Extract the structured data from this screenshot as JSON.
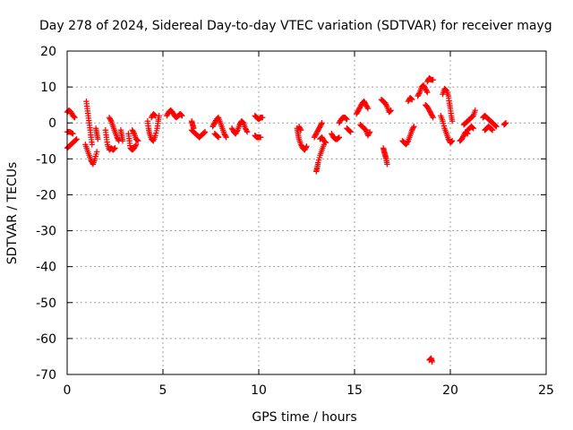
{
  "chart_data": {
    "type": "scatter",
    "title": "Day 278 of 2024, Sidereal Day-to-day VTEC variation (SDTVAR) for receiver mayg",
    "xlabel": "GPS time / hours",
    "ylabel": "SDTVAR / TECUs",
    "xlim": [
      0,
      25
    ],
    "ylim": [
      -70,
      20
    ],
    "xticks": [
      0,
      5,
      10,
      15,
      20,
      25
    ],
    "yticks": [
      20,
      10,
      0,
      -10,
      -20,
      -30,
      -40,
      -50,
      -60,
      -70
    ],
    "grid": true,
    "marker": "+",
    "color": "#ff0000",
    "series": [
      {
        "name": "SDTVAR",
        "segments": [
          [
            [
              0.0,
              3.0
            ],
            [
              0.1,
              3.5
            ],
            [
              0.2,
              3.0
            ],
            [
              0.3,
              2.0
            ],
            [
              0.4,
              1.5
            ]
          ],
          [
            [
              0.0,
              -7.0
            ],
            [
              0.1,
              -6.5
            ],
            [
              0.2,
              -6.0
            ],
            [
              0.3,
              -5.5
            ],
            [
              0.4,
              -5.0
            ],
            [
              0.5,
              -4.5
            ]
          ],
          [
            [
              0.0,
              -2.5
            ],
            [
              0.15,
              -2.5
            ],
            [
              0.3,
              -3.0
            ]
          ],
          [
            [
              1.0,
              6.0
            ],
            [
              1.05,
              4.0
            ],
            [
              1.1,
              2.0
            ],
            [
              1.15,
              0.0
            ],
            [
              1.2,
              -2.0
            ],
            [
              1.25,
              -4.0
            ],
            [
              1.3,
              -6.0
            ]
          ],
          [
            [
              0.95,
              -6.0
            ],
            [
              1.05,
              -7.5
            ],
            [
              1.15,
              -9.0
            ],
            [
              1.25,
              -10.5
            ],
            [
              1.35,
              -11.5
            ],
            [
              1.45,
              -10.0
            ],
            [
              1.55,
              -8.0
            ]
          ],
          [
            [
              1.5,
              -1.5
            ],
            [
              1.55,
              -3.0
            ],
            [
              1.6,
              -4.5
            ]
          ],
          [
            [
              2.0,
              -2.0
            ],
            [
              2.05,
              -4.0
            ],
            [
              2.1,
              -6.0
            ],
            [
              2.2,
              -7.5
            ],
            [
              2.3,
              -7.0
            ],
            [
              2.4,
              -7.5
            ],
            [
              2.5,
              -7.0
            ]
          ],
          [
            [
              2.2,
              1.5
            ],
            [
              2.3,
              0.5
            ],
            [
              2.4,
              -1.0
            ],
            [
              2.5,
              -2.5
            ],
            [
              2.6,
              -4.0
            ],
            [
              2.7,
              -5.0
            ]
          ],
          [
            [
              2.8,
              -2.0
            ],
            [
              2.85,
              -3.5
            ],
            [
              2.9,
              -5.0
            ]
          ],
          [
            [
              3.2,
              -3.0
            ],
            [
              3.25,
              -5.0
            ],
            [
              3.3,
              -7.0
            ],
            [
              3.4,
              -7.5
            ],
            [
              3.5,
              -7.0
            ],
            [
              3.6,
              -6.0
            ]
          ],
          [
            [
              3.4,
              -2.0
            ],
            [
              3.5,
              -3.0
            ],
            [
              3.6,
              -4.5
            ],
            [
              3.7,
              -5.0
            ]
          ],
          [
            [
              4.2,
              0.5
            ],
            [
              4.25,
              -1.5
            ],
            [
              4.3,
              -3.0
            ],
            [
              4.4,
              -4.5
            ],
            [
              4.5,
              -5.0
            ],
            [
              4.6,
              -3.5
            ],
            [
              4.7,
              -1.5
            ],
            [
              4.75,
              0.5
            ],
            [
              4.8,
              2.0
            ]
          ],
          [
            [
              4.4,
              1.5
            ],
            [
              4.5,
              2.5
            ],
            [
              4.6,
              2.0
            ]
          ],
          [
            [
              5.2,
              2.0
            ],
            [
              5.3,
              3.0
            ],
            [
              5.4,
              3.5
            ],
            [
              5.5,
              3.0
            ],
            [
              5.6,
              2.0
            ],
            [
              5.7,
              1.5
            ],
            [
              5.8,
              2.0
            ],
            [
              5.9,
              2.5
            ],
            [
              6.0,
              2.0
            ]
          ],
          [
            [
              6.5,
              -2.0
            ],
            [
              6.6,
              -2.5
            ],
            [
              6.7,
              -3.0
            ],
            [
              6.8,
              -3.5
            ],
            [
              6.9,
              -4.0
            ],
            [
              7.0,
              -3.5
            ],
            [
              7.1,
              -3.0
            ],
            [
              7.2,
              -2.5
            ]
          ],
          [
            [
              6.5,
              0.5
            ],
            [
              6.55,
              -0.5
            ],
            [
              6.6,
              -1.5
            ]
          ],
          [
            [
              7.6,
              -1.0
            ],
            [
              7.7,
              0.0
            ],
            [
              7.8,
              1.0
            ],
            [
              7.9,
              1.5
            ],
            [
              8.0,
              0.0
            ],
            [
              8.1,
              -1.5
            ],
            [
              8.2,
              -3.0
            ],
            [
              8.3,
              -4.0
            ]
          ],
          [
            [
              7.7,
              -3.0
            ],
            [
              7.8,
              -3.5
            ],
            [
              7.9,
              -4.0
            ]
          ],
          [
            [
              8.6,
              -1.5
            ],
            [
              8.7,
              -2.5
            ],
            [
              8.8,
              -3.0
            ],
            [
              8.9,
              -2.0
            ],
            [
              9.0,
              -0.5
            ],
            [
              9.1,
              0.5
            ],
            [
              9.2,
              0.0
            ],
            [
              9.3,
              -1.5
            ],
            [
              9.4,
              -2.5
            ]
          ],
          [
            [
              9.8,
              2.0
            ],
            [
              9.9,
              1.5
            ],
            [
              10.0,
              1.0
            ],
            [
              10.1,
              1.5
            ],
            [
              10.2,
              1.5
            ]
          ],
          [
            [
              9.8,
              -3.5
            ],
            [
              9.9,
              -4.0
            ],
            [
              10.0,
              -4.0
            ],
            [
              10.1,
              -4.0
            ]
          ],
          [
            [
              12.0,
              -1.5
            ],
            [
              12.05,
              -3.0
            ],
            [
              12.1,
              -4.5
            ],
            [
              12.2,
              -6.0
            ],
            [
              12.3,
              -7.0
            ],
            [
              12.4,
              -7.5
            ],
            [
              12.5,
              -6.5
            ]
          ],
          [
            [
              12.1,
              -1.0
            ],
            [
              12.2,
              -2.0
            ]
          ],
          [
            [
              13.0,
              -13.5
            ],
            [
              13.05,
              -12.5
            ],
            [
              13.1,
              -11.0
            ],
            [
              13.2,
              -9.0
            ],
            [
              13.3,
              -7.5
            ],
            [
              13.4,
              -6.0
            ]
          ],
          [
            [
              12.9,
              -4.0
            ],
            [
              13.0,
              -3.0
            ],
            [
              13.1,
              -2.0
            ],
            [
              13.2,
              -1.0
            ],
            [
              13.3,
              0.0
            ]
          ],
          [
            [
              13.2,
              -4.5
            ],
            [
              13.3,
              -4.0
            ],
            [
              13.4,
              -5.0
            ],
            [
              13.5,
              -5.5
            ]
          ],
          [
            [
              13.8,
              -3.0
            ],
            [
              13.9,
              -4.0
            ],
            [
              14.0,
              -4.5
            ],
            [
              14.1,
              -4.5
            ],
            [
              14.2,
              -4.0
            ]
          ],
          [
            [
              14.2,
              0.0
            ],
            [
              14.3,
              1.0
            ],
            [
              14.4,
              1.5
            ],
            [
              14.5,
              1.5
            ],
            [
              14.6,
              1.0
            ]
          ],
          [
            [
              14.6,
              -1.5
            ],
            [
              14.7,
              -2.0
            ],
            [
              14.8,
              -2.5
            ]
          ],
          [
            [
              15.1,
              2.5
            ],
            [
              15.2,
              3.5
            ],
            [
              15.3,
              4.5
            ],
            [
              15.4,
              5.5
            ],
            [
              15.5,
              6.0
            ],
            [
              15.6,
              5.0
            ],
            [
              15.7,
              4.0
            ]
          ],
          [
            [
              15.3,
              -0.5
            ],
            [
              15.4,
              -1.0
            ],
            [
              15.5,
              -1.5
            ],
            [
              15.6,
              -2.0
            ],
            [
              15.7,
              -3.5
            ],
            [
              15.8,
              -2.5
            ]
          ],
          [
            [
              16.4,
              6.5
            ],
            [
              16.5,
              6.0
            ],
            [
              16.6,
              5.5
            ],
            [
              16.7,
              4.5
            ],
            [
              16.8,
              3.0
            ],
            [
              16.9,
              3.5
            ]
          ],
          [
            [
              16.5,
              -7.0
            ],
            [
              16.55,
              -8.0
            ],
            [
              16.6,
              -9.0
            ],
            [
              16.65,
              -10.0
            ],
            [
              16.7,
              -11.5
            ]
          ],
          [
            [
              17.5,
              -5.0
            ],
            [
              17.6,
              -5.5
            ],
            [
              17.7,
              -6.0
            ],
            [
              17.8,
              -5.0
            ],
            [
              17.9,
              -3.5
            ],
            [
              18.0,
              -2.0
            ],
            [
              18.1,
              -1.0
            ]
          ],
          [
            [
              17.8,
              6.0
            ],
            [
              17.9,
              7.0
            ],
            [
              18.0,
              6.5
            ]
          ],
          [
            [
              18.3,
              7.5
            ],
            [
              18.4,
              8.5
            ],
            [
              18.5,
              10.0
            ],
            [
              18.6,
              10.5
            ],
            [
              18.7,
              9.5
            ],
            [
              18.8,
              8.5
            ]
          ],
          [
            [
              18.8,
              11.5
            ],
            [
              18.9,
              12.5
            ],
            [
              19.0,
              12.0
            ],
            [
              19.1,
              12.0
            ]
          ],
          [
            [
              18.7,
              5.0
            ],
            [
              18.8,
              4.5
            ],
            [
              18.9,
              3.5
            ],
            [
              19.0,
              2.5
            ],
            [
              19.1,
              1.5
            ]
          ],
          [
            [
              18.9,
              -66.0
            ],
            [
              19.0,
              -65.5
            ],
            [
              19.05,
              -66.5
            ]
          ],
          [
            [
              19.5,
              2.0
            ],
            [
              19.6,
              0.5
            ],
            [
              19.7,
              -1.5
            ],
            [
              19.8,
              -3.0
            ],
            [
              19.9,
              -4.5
            ],
            [
              20.0,
              -5.5
            ],
            [
              20.1,
              -5.0
            ]
          ],
          [
            [
              19.6,
              8.0
            ],
            [
              19.7,
              9.5
            ],
            [
              19.8,
              9.0
            ],
            [
              19.9,
              7.5
            ],
            [
              19.95,
              5.5
            ],
            [
              20.0,
              4.0
            ],
            [
              20.05,
              2.0
            ],
            [
              20.1,
              0.5
            ]
          ],
          [
            [
              20.5,
              -5.0
            ],
            [
              20.6,
              -4.5
            ],
            [
              20.7,
              -3.5
            ],
            [
              20.8,
              -2.5
            ],
            [
              20.9,
              -3.0
            ]
          ],
          [
            [
              20.7,
              -0.5
            ],
            [
              20.8,
              0.0
            ],
            [
              20.9,
              0.5
            ],
            [
              21.0,
              1.0
            ],
            [
              21.1,
              1.5
            ],
            [
              21.2,
              2.0
            ],
            [
              21.3,
              3.5
            ]
          ],
          [
            [
              20.9,
              -2.0
            ],
            [
              21.0,
              -1.5
            ],
            [
              21.1,
              -1.0
            ],
            [
              21.2,
              -1.5
            ]
          ],
          [
            [
              21.7,
              1.5
            ],
            [
              21.8,
              2.0
            ],
            [
              21.9,
              1.5
            ],
            [
              22.0,
              1.0
            ],
            [
              22.1,
              0.5
            ],
            [
              22.2,
              0.0
            ],
            [
              22.3,
              -0.5
            ],
            [
              22.4,
              -1.0
            ]
          ],
          [
            [
              21.8,
              -2.0
            ],
            [
              21.9,
              -1.5
            ],
            [
              22.0,
              -1.0
            ],
            [
              22.1,
              -1.5
            ],
            [
              22.2,
              -2.0
            ]
          ],
          [
            [
              22.8,
              -0.5
            ],
            [
              22.9,
              0.0
            ]
          ]
        ]
      }
    ]
  }
}
